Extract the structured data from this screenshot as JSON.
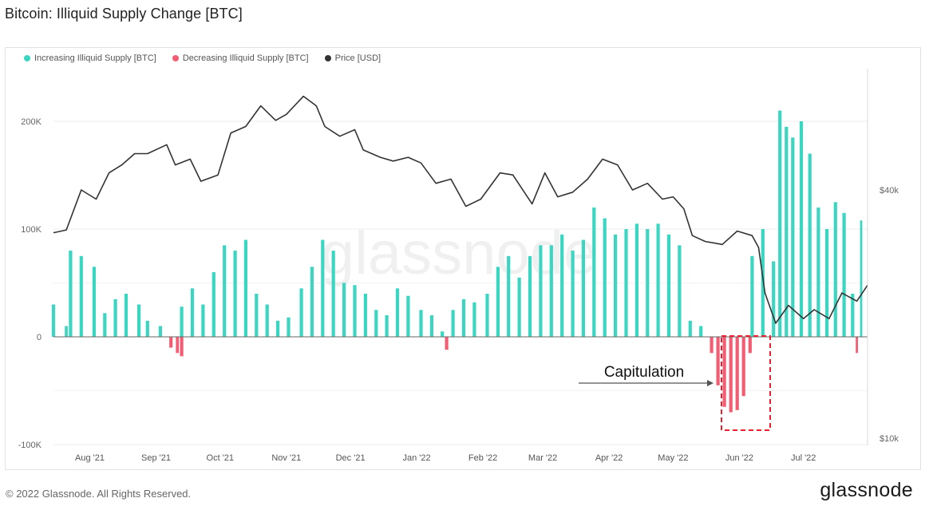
{
  "title": "Bitcoin: Illiquid Supply Change [BTC]",
  "legend": [
    {
      "label": "Increasing Illiquid Supply [BTC]",
      "color": "#3ad6c2"
    },
    {
      "label": "Decreasing Illiquid Supply [BTC]",
      "color": "#f25d73"
    },
    {
      "label": "Price [USD]",
      "color": "#333333"
    }
  ],
  "annotation": {
    "label": "Capitulation"
  },
  "watermark": "glassnode",
  "footer": {
    "copyright": "© 2022 Glassnode. All Rights Reserved.",
    "logo": "glassnode"
  },
  "chart_data": {
    "type": "bar",
    "title": "Bitcoin: Illiquid Supply Change [BTC]",
    "x_tick_labels": [
      "Aug '21",
      "Sep '21",
      "Oct '21",
      "Nov '21",
      "Dec '21",
      "Jan '22",
      "Feb '22",
      "Mar '22",
      "Apr '22",
      "May '22",
      "Jun '22",
      "Jul '22"
    ],
    "x_range": [
      "2021-07-15",
      "2022-07-31"
    ],
    "y_left": {
      "ticks": [
        200000,
        100000,
        0,
        -100000
      ],
      "tick_labels": [
        "200K",
        "100K",
        "0",
        "-100K"
      ],
      "range": [
        -100000,
        230000
      ]
    },
    "y_right": {
      "scale": "log",
      "ticks": [
        40000,
        10000
      ],
      "tick_labels": [
        "$40k",
        "$10k"
      ],
      "range": [
        10000,
        68000
      ]
    },
    "grid": "horizontal",
    "legend_position": "top-left",
    "series": [
      {
        "name": "Increasing Illiquid Supply [BTC]",
        "axis": "left",
        "color": "#3ad6c2",
        "points": [
          [
            "2021-07-15",
            30000
          ],
          [
            "2021-07-21",
            10000
          ],
          [
            "2021-07-23",
            80000
          ],
          [
            "2021-07-28",
            75000
          ],
          [
            "2021-08-03",
            65000
          ],
          [
            "2021-08-08",
            22000
          ],
          [
            "2021-08-13",
            35000
          ],
          [
            "2021-08-18",
            40000
          ],
          [
            "2021-08-24",
            30000
          ],
          [
            "2021-08-28",
            15000
          ],
          [
            "2021-09-03",
            10000
          ],
          [
            "2021-09-08",
            0
          ],
          [
            "2021-09-13",
            28000
          ],
          [
            "2021-09-18",
            45000
          ],
          [
            "2021-09-23",
            30000
          ],
          [
            "2021-09-28",
            60000
          ],
          [
            "2021-10-03",
            85000
          ],
          [
            "2021-10-08",
            80000
          ],
          [
            "2021-10-13",
            90000
          ],
          [
            "2021-10-18",
            40000
          ],
          [
            "2021-10-23",
            30000
          ],
          [
            "2021-10-28",
            15000
          ],
          [
            "2021-11-02",
            18000
          ],
          [
            "2021-11-08",
            45000
          ],
          [
            "2021-11-13",
            65000
          ],
          [
            "2021-11-18",
            90000
          ],
          [
            "2021-11-23",
            80000
          ],
          [
            "2021-11-28",
            50000
          ],
          [
            "2021-12-03",
            48000
          ],
          [
            "2021-12-08",
            40000
          ],
          [
            "2021-12-13",
            25000
          ],
          [
            "2021-12-18",
            20000
          ],
          [
            "2021-12-23",
            45000
          ],
          [
            "2021-12-28",
            38000
          ],
          [
            "2022-01-03",
            25000
          ],
          [
            "2022-01-08",
            20000
          ],
          [
            "2022-01-13",
            5000
          ],
          [
            "2022-01-18",
            25000
          ],
          [
            "2022-01-23",
            35000
          ],
          [
            "2022-01-28",
            32000
          ],
          [
            "2022-02-03",
            40000
          ],
          [
            "2022-02-08",
            65000
          ],
          [
            "2022-02-13",
            75000
          ],
          [
            "2022-02-18",
            55000
          ],
          [
            "2022-02-23",
            75000
          ],
          [
            "2022-02-28",
            85000
          ],
          [
            "2022-03-05",
            85000
          ],
          [
            "2022-03-10",
            95000
          ],
          [
            "2022-03-15",
            80000
          ],
          [
            "2022-03-20",
            90000
          ],
          [
            "2022-03-25",
            120000
          ],
          [
            "2022-03-30",
            110000
          ],
          [
            "2022-04-04",
            95000
          ],
          [
            "2022-04-09",
            100000
          ],
          [
            "2022-04-14",
            105000
          ],
          [
            "2022-04-19",
            100000
          ],
          [
            "2022-04-24",
            105000
          ],
          [
            "2022-04-29",
            95000
          ],
          [
            "2022-05-04",
            85000
          ],
          [
            "2022-05-09",
            15000
          ],
          [
            "2022-05-14",
            10000
          ],
          [
            "2022-06-07",
            75000
          ],
          [
            "2022-06-12",
            100000
          ],
          [
            "2022-06-17",
            70000
          ],
          [
            "2022-06-20",
            210000
          ],
          [
            "2022-06-23",
            195000
          ],
          [
            "2022-06-26",
            185000
          ],
          [
            "2022-06-30",
            200000
          ],
          [
            "2022-07-04",
            170000
          ],
          [
            "2022-07-08",
            120000
          ],
          [
            "2022-07-12",
            100000
          ],
          [
            "2022-07-16",
            125000
          ],
          [
            "2022-07-20",
            115000
          ],
          [
            "2022-07-24",
            40000
          ],
          [
            "2022-07-28",
            108000
          ]
        ]
      },
      {
        "name": "Decreasing Illiquid Supply [BTC]",
        "axis": "left",
        "color": "#f25d73",
        "points": [
          [
            "2021-09-08",
            -10000
          ],
          [
            "2021-09-11",
            -15000
          ],
          [
            "2021-09-13",
            -18000
          ],
          [
            "2022-01-15",
            -12000
          ],
          [
            "2022-05-19",
            -15000
          ],
          [
            "2022-05-22",
            -45000
          ],
          [
            "2022-05-25",
            -65000
          ],
          [
            "2022-05-28",
            -70000
          ],
          [
            "2022-05-31",
            -68000
          ],
          [
            "2022-06-03",
            -55000
          ],
          [
            "2022-06-06",
            -15000
          ],
          [
            "2022-07-26",
            -15000
          ]
        ]
      },
      {
        "name": "Price [USD]",
        "axis": "right",
        "color": "#333333",
        "points": [
          [
            "2021-07-15",
            31500
          ],
          [
            "2021-07-21",
            32000
          ],
          [
            "2021-07-28",
            40000
          ],
          [
            "2021-08-04",
            38000
          ],
          [
            "2021-08-10",
            44000
          ],
          [
            "2021-08-16",
            46000
          ],
          [
            "2021-08-22",
            49000
          ],
          [
            "2021-08-28",
            49000
          ],
          [
            "2021-09-06",
            51500
          ],
          [
            "2021-09-10",
            46000
          ],
          [
            "2021-09-17",
            47500
          ],
          [
            "2021-09-22",
            42000
          ],
          [
            "2021-09-30",
            43500
          ],
          [
            "2021-10-06",
            55000
          ],
          [
            "2021-10-13",
            57000
          ],
          [
            "2021-10-20",
            64000
          ],
          [
            "2021-10-27",
            59000
          ],
          [
            "2021-11-01",
            61000
          ],
          [
            "2021-11-09",
            67500
          ],
          [
            "2021-11-15",
            64000
          ],
          [
            "2021-11-19",
            57000
          ],
          [
            "2021-11-26",
            54000
          ],
          [
            "2021-12-03",
            56000
          ],
          [
            "2021-12-07",
            50000
          ],
          [
            "2021-12-15",
            48000
          ],
          [
            "2021-12-21",
            47000
          ],
          [
            "2021-12-28",
            48000
          ],
          [
            "2022-01-03",
            46500
          ],
          [
            "2022-01-10",
            41500
          ],
          [
            "2022-01-17",
            42500
          ],
          [
            "2022-01-24",
            36500
          ],
          [
            "2022-01-31",
            38000
          ],
          [
            "2022-02-09",
            44000
          ],
          [
            "2022-02-15",
            43500
          ],
          [
            "2022-02-24",
            37000
          ],
          [
            "2022-03-02",
            44000
          ],
          [
            "2022-03-08",
            38500
          ],
          [
            "2022-03-15",
            39500
          ],
          [
            "2022-03-22",
            42500
          ],
          [
            "2022-03-29",
            47500
          ],
          [
            "2022-04-05",
            46000
          ],
          [
            "2022-04-12",
            40000
          ],
          [
            "2022-04-19",
            41500
          ],
          [
            "2022-04-26",
            38000
          ],
          [
            "2022-05-01",
            38500
          ],
          [
            "2022-05-06",
            36000
          ],
          [
            "2022-05-10",
            31000
          ],
          [
            "2022-05-16",
            30000
          ],
          [
            "2022-05-24",
            29500
          ],
          [
            "2022-05-31",
            31800
          ],
          [
            "2022-06-07",
            31000
          ],
          [
            "2022-06-10",
            29000
          ],
          [
            "2022-06-13",
            22500
          ],
          [
            "2022-06-18",
            19000
          ],
          [
            "2022-06-24",
            21000
          ],
          [
            "2022-07-01",
            19500
          ],
          [
            "2022-07-06",
            20500
          ],
          [
            "2022-07-13",
            19500
          ],
          [
            "2022-07-19",
            22500
          ],
          [
            "2022-07-26",
            21500
          ],
          [
            "2022-07-31",
            23500
          ]
        ]
      }
    ]
  }
}
